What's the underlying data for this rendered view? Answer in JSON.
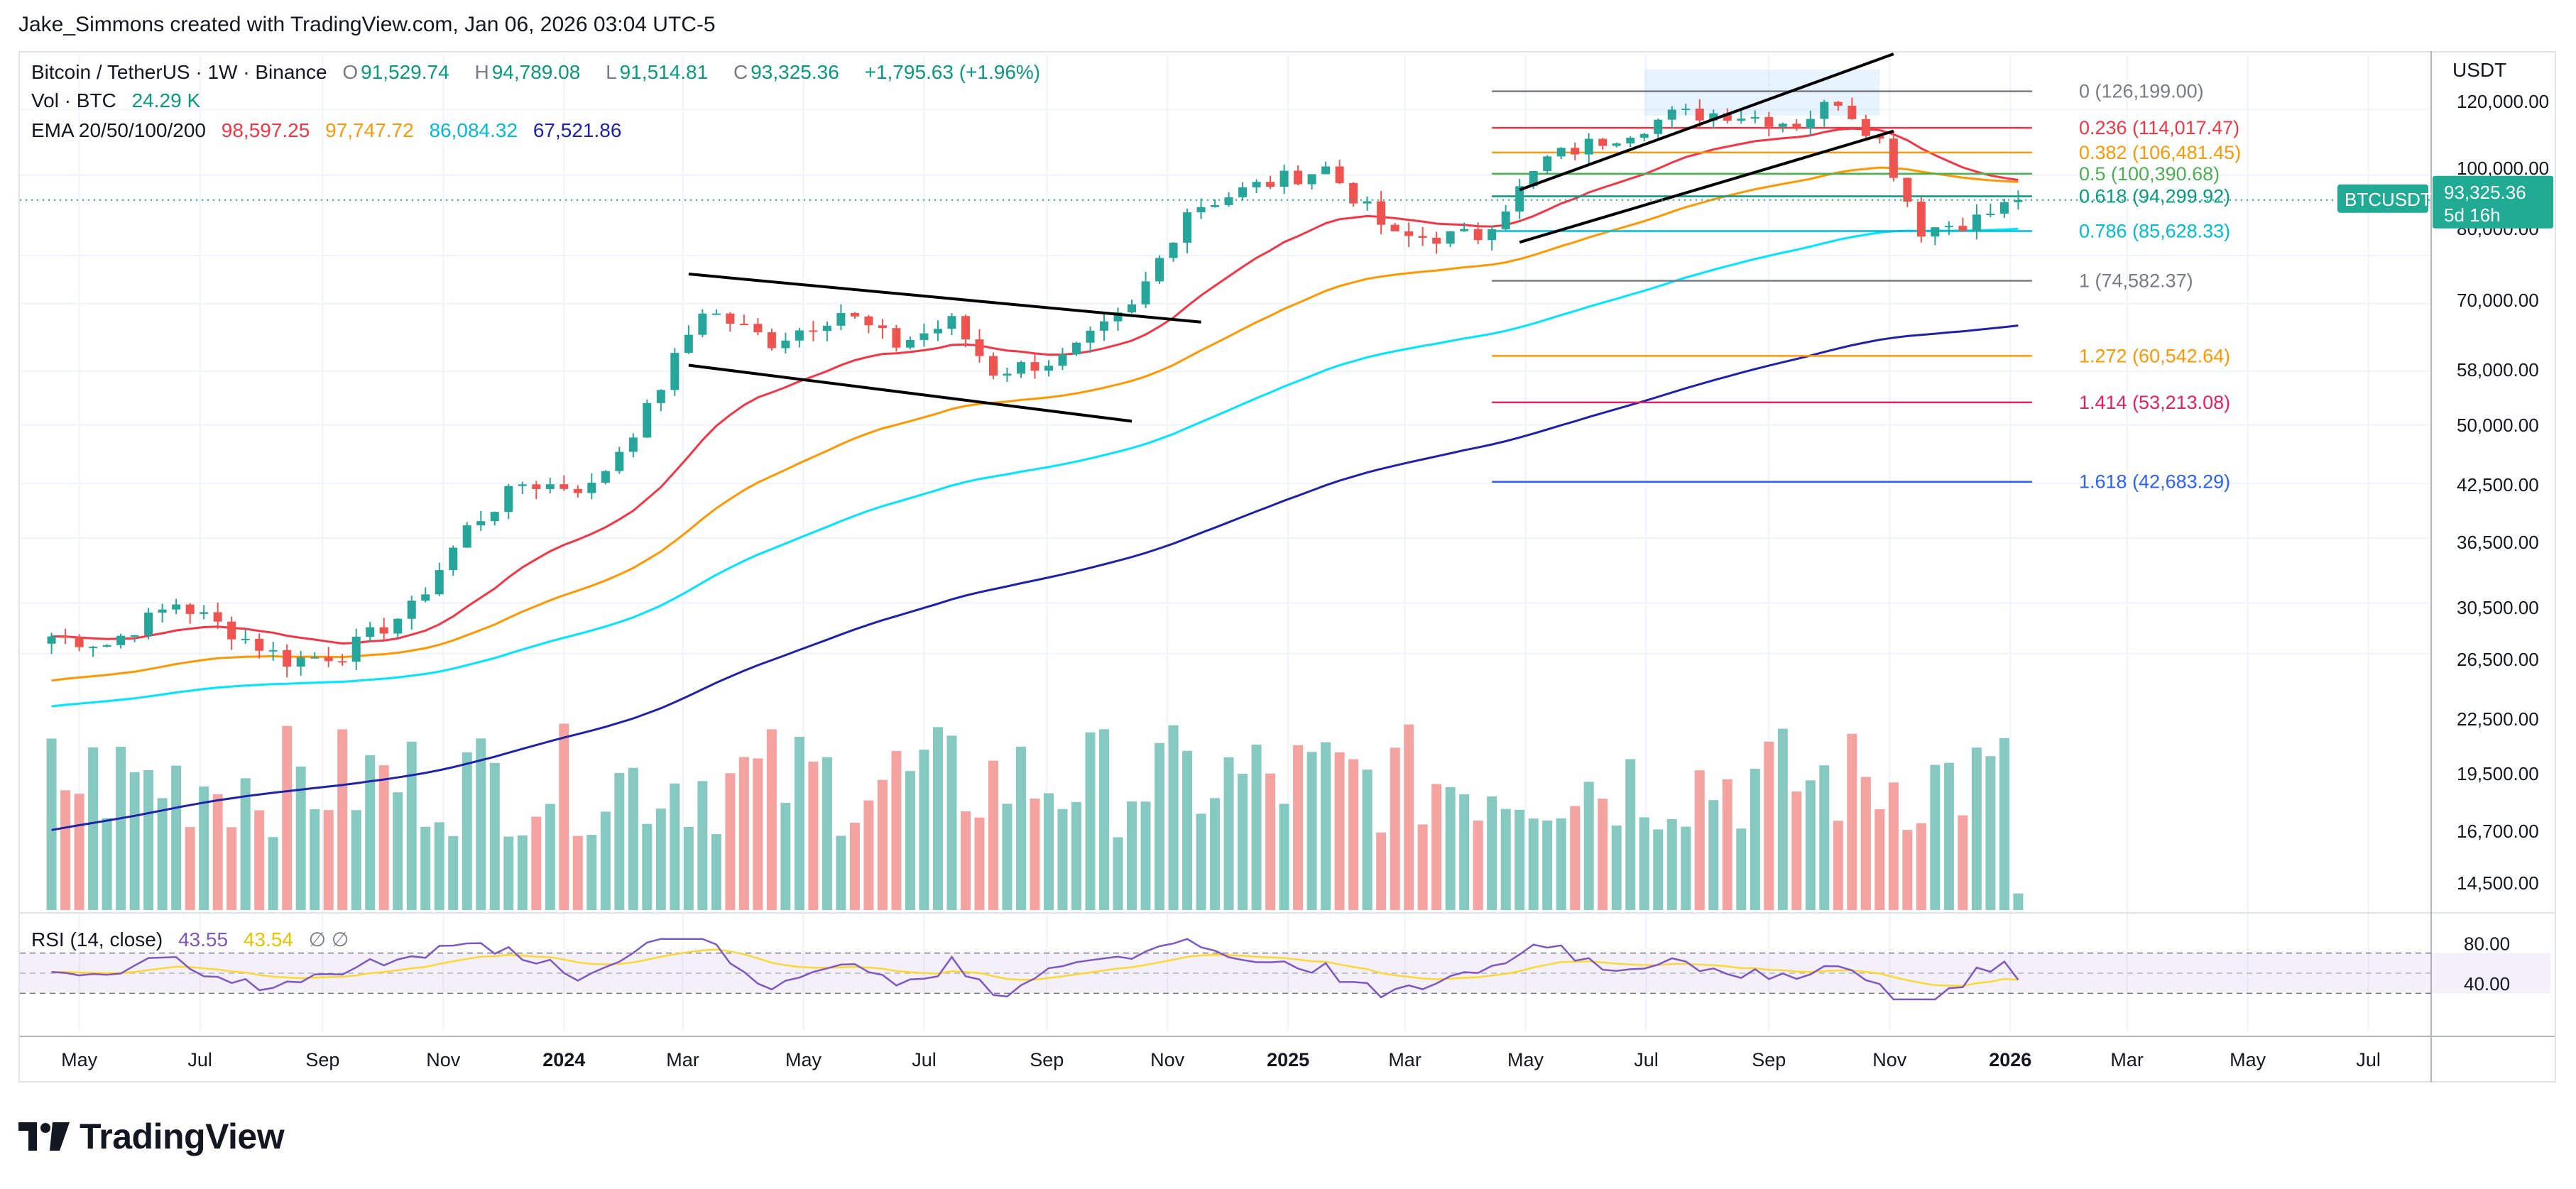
{
  "attribution": "Jake_Simmons created with TradingView.com, Jan 06, 2026 03:04 UTC-5",
  "logo_text": "TradingView",
  "legend": {
    "symbol": "Bitcoin / TetherUS · 1W · Binance",
    "open_label": "O",
    "open": "91,529.74",
    "high_label": "H",
    "high": "94,789.08",
    "low_label": "L",
    "low": "91,514.81",
    "close_label": "C",
    "close": "93,325.36",
    "change": "+1,795.63 (+1.96%)",
    "vol_label": "Vol · BTC",
    "vol": "24.29 K",
    "ema_label": "EMA 20/50/100/200",
    "ema": [
      {
        "value": "98,597.25",
        "color": "#f23645"
      },
      {
        "value": "97,747.72",
        "color": "#ff9800"
      },
      {
        "value": "86,084.32",
        "color": "#00e5ff"
      },
      {
        "value": "67,521.86",
        "color": "#1e22aa"
      }
    ],
    "rsi_label": "RSI (14, close)",
    "rsi": "43.55",
    "rsi_ma": "43.54",
    "rsi_extra": "∅ ∅"
  },
  "currency": "USDT",
  "price_tag": {
    "label": "BTCUSDT",
    "price": "93,325.36",
    "time": "5d 16h",
    "value": 93325.36,
    "color": "#22ab94"
  },
  "price_axis": [
    "120,000.00",
    "100,000.00",
    "80,000.00",
    "70,000.00",
    "58,000.00",
    "50,000.00",
    "42,500.00",
    "36,500.00",
    "30,500.00",
    "26,500.00",
    "22,500.00",
    "19,500.00",
    "16,700.00",
    "14,500.00"
  ],
  "rsi_axis": [
    "80.00",
    "40.00"
  ],
  "time_axis": [
    "May",
    "Jul",
    "Sep",
    "Nov",
    "2024",
    "Mar",
    "May",
    "Jul",
    "Sep",
    "Nov",
    "2025",
    "Mar",
    "May",
    "Jul",
    "Sep",
    "Nov",
    "2026",
    "Mar",
    "May",
    "Jul"
  ],
  "colors": {
    "up": "#26a69a",
    "down": "#ef5350",
    "grid": "#f0f3fa",
    "axis_text": "#131722",
    "rsi": "#7e57c2",
    "rsi_ma": "#fdd835"
  },
  "chart_data": {
    "type": "candlestick",
    "title": "Bitcoin / TetherUS · 1W · Binance",
    "y_scale": "log",
    "ylim": [
      13000,
      140000
    ],
    "x_start": "2023-04-17",
    "bar_interval": "1W",
    "weekly_close_keypoints": [
      [
        "2023-04-17",
        27800
      ],
      [
        "2023-05-15",
        27200
      ],
      [
        "2023-06-19",
        30500
      ],
      [
        "2023-08-14",
        26000
      ],
      [
        "2023-09-11",
        26500
      ],
      [
        "2023-10-16",
        30000
      ],
      [
        "2023-11-13",
        37500
      ],
      [
        "2023-12-11",
        42500
      ],
      [
        "2024-01-15",
        42000
      ],
      [
        "2024-02-12",
        52000
      ],
      [
        "2024-03-11",
        69000
      ],
      [
        "2024-04-15",
        63000
      ],
      [
        "2024-05-20",
        68500
      ],
      [
        "2024-06-17",
        62500
      ],
      [
        "2024-07-15",
        66500
      ],
      [
        "2024-08-05",
        58000
      ],
      [
        "2024-09-09",
        60000
      ],
      [
        "2024-10-14",
        69000
      ],
      [
        "2024-11-11",
        91000
      ],
      [
        "2024-12-16",
        97000
      ],
      [
        "2025-01-20",
        102000
      ],
      [
        "2025-02-24",
        84000
      ],
      [
        "2025-04-07",
        84500
      ],
      [
        "2025-05-12",
        104500
      ],
      [
        "2025-07-14",
        118000
      ],
      [
        "2025-08-11",
        119000
      ],
      [
        "2025-09-15",
        115500
      ],
      [
        "2025-10-06",
        123500
      ],
      [
        "2025-10-27",
        110000
      ],
      [
        "2025-11-17",
        86000
      ],
      [
        "2025-12-15",
        88500
      ],
      [
        "2026-01-05",
        93325
      ]
    ],
    "ema": [
      {
        "name": "EMA 20",
        "last": 98597.25,
        "color": "#f23645"
      },
      {
        "name": "EMA 50",
        "last": 97747.72,
        "color": "#ff9800"
      },
      {
        "name": "EMA 100",
        "last": 86084.32,
        "color": "#00e5ff"
      },
      {
        "name": "EMA 200",
        "last": 67521.86,
        "color": "#1e22aa"
      }
    ],
    "fibonacci": [
      {
        "level": "0",
        "price": 126199.0,
        "label": "0 (126,199.00)",
        "color": "#787b86"
      },
      {
        "level": "0.236",
        "price": 114017.47,
        "label": "0.236 (114,017.47)",
        "color": "#f23645"
      },
      {
        "level": "0.382",
        "price": 106481.45,
        "label": "0.382 (106,481.45)",
        "color": "#ff9800"
      },
      {
        "level": "0.5",
        "price": 100390.68,
        "label": "0.5 (100,390.68)",
        "color": "#4caf50"
      },
      {
        "level": "0.618",
        "price": 94299.92,
        "label": "0.618 (94,299.92)",
        "color": "#089981"
      },
      {
        "level": "0.786",
        "price": 85628.33,
        "label": "0.786 (85,628.33)",
        "color": "#00bcd4"
      },
      {
        "level": "1",
        "price": 74582.37,
        "label": "1 (74,582.37)",
        "color": "#787b86"
      },
      {
        "level": "1.272",
        "price": 60542.64,
        "label": "1.272 (60,542.64)",
        "color": "#ff9800"
      },
      {
        "level": "1.414",
        "price": 53213.08,
        "label": "1.414 (53,213.08)",
        "color": "#e91e63"
      },
      {
        "level": "1.618",
        "price": 42683.29,
        "label": "1.618 (42,683.29)",
        "color": "#2962ff"
      }
    ],
    "trendlines": [
      {
        "kind": "flag-upper",
        "from": [
          "2024-03-04",
          76000
        ],
        "to": [
          "2024-11-18",
          66500
        ]
      },
      {
        "kind": "flag-lower",
        "from": [
          "2024-03-04",
          59000
        ],
        "to": [
          "2024-10-14",
          50500
        ]
      },
      {
        "kind": "channel-upper",
        "from": [
          "2025-04-28",
          96000
        ],
        "to": [
          "2025-11-03",
          140000
        ]
      },
      {
        "kind": "channel-lower",
        "from": [
          "2025-04-28",
          83000
        ],
        "to": [
          "2025-11-03",
          113000
        ]
      }
    ],
    "rsi": {
      "period": 14,
      "last": 43.55,
      "ma_last": 43.54,
      "upper": 70,
      "lower": 30
    }
  }
}
